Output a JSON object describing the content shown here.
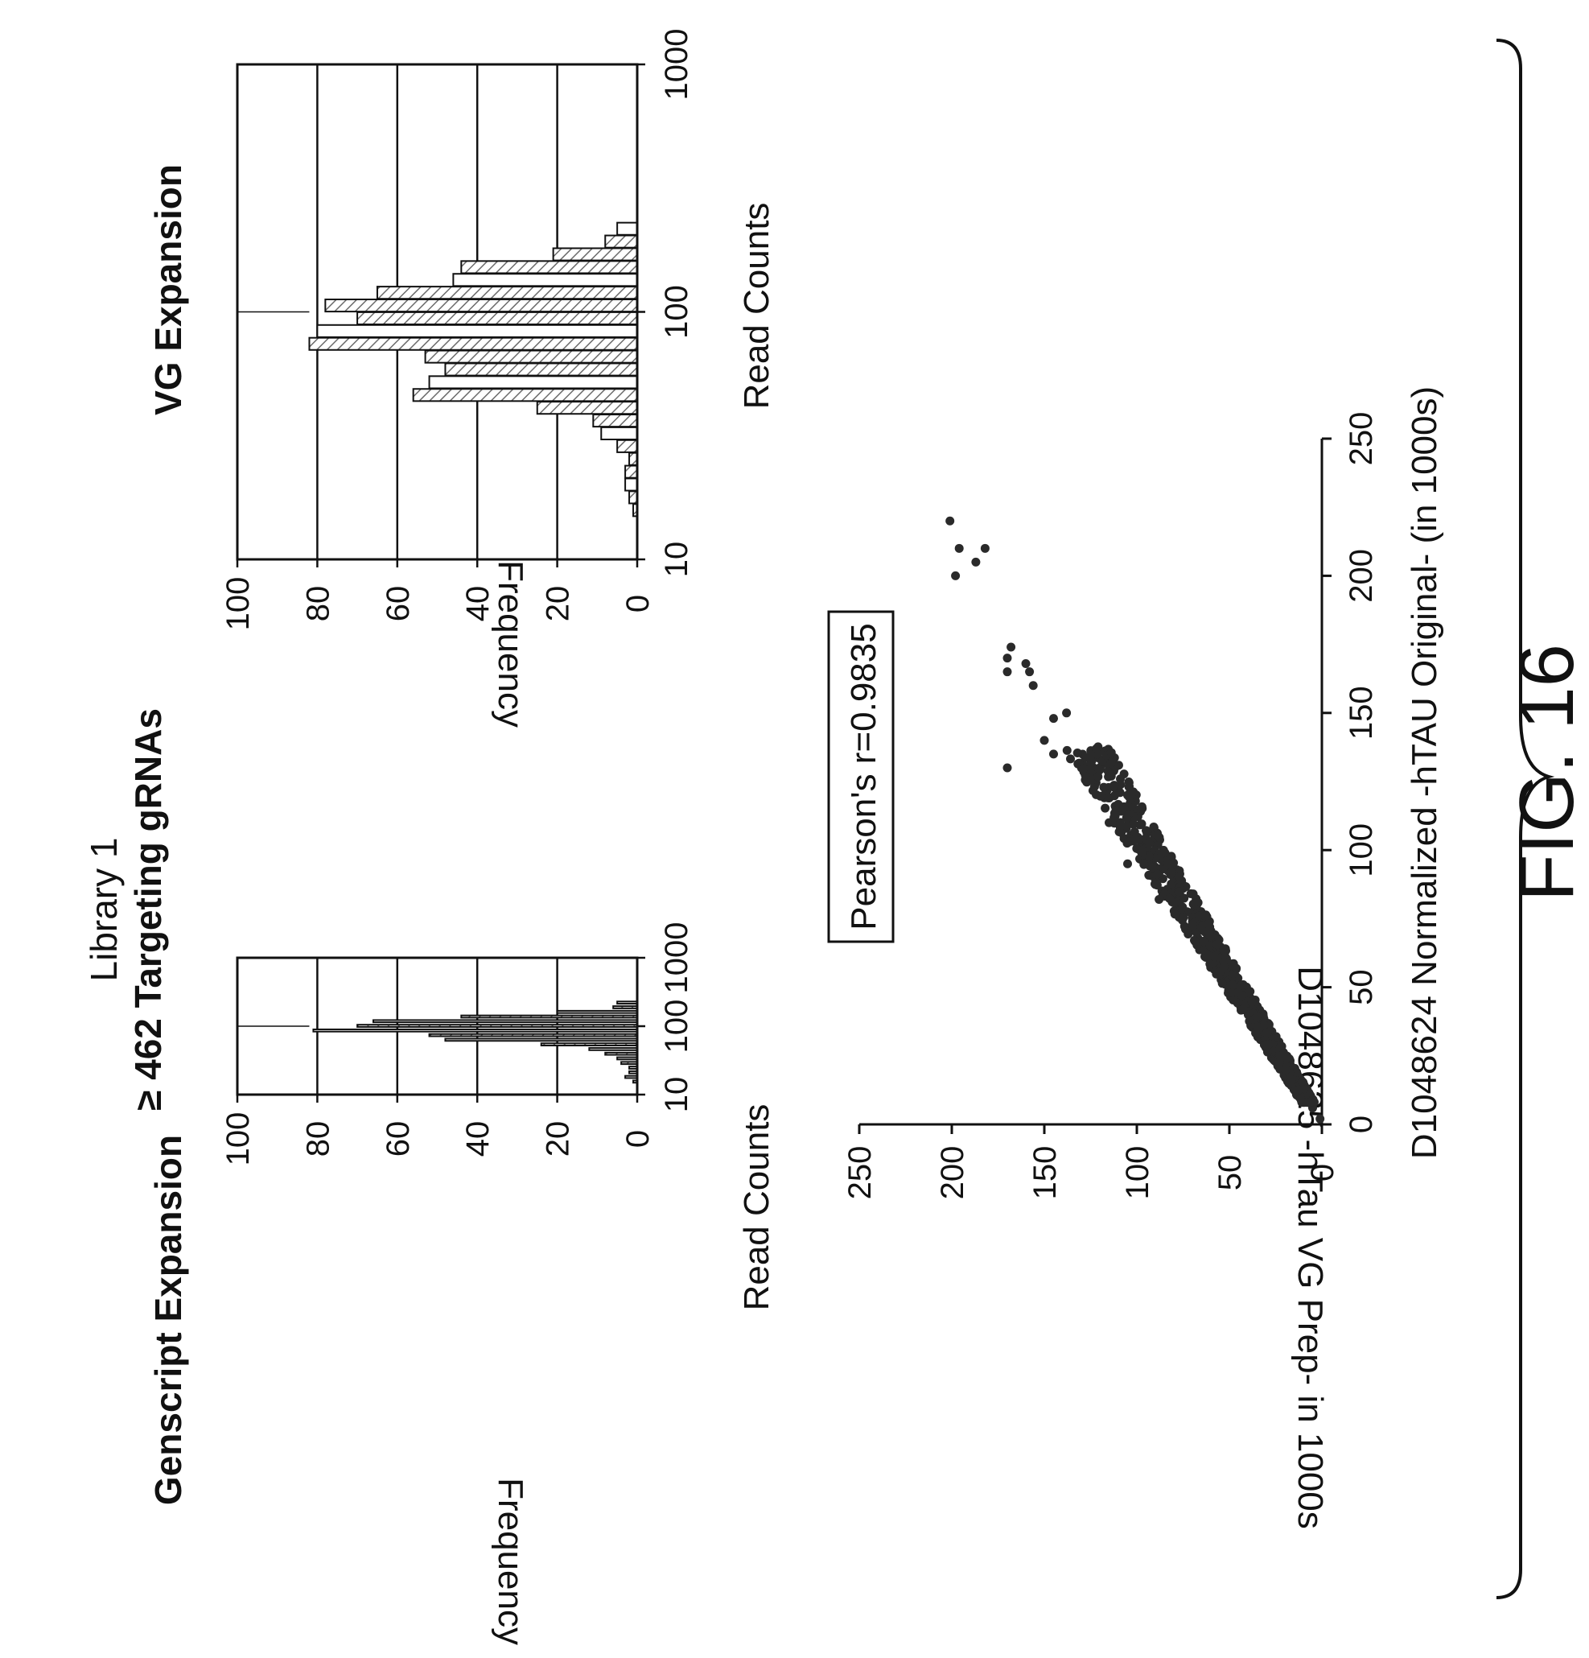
{
  "figure": {
    "library_title": "Library 1",
    "library_subtitle": "≥ 462 Targeting gRNAs",
    "fig_label": "FIG. 16",
    "pearson_label": "Pearson's r=0.9835",
    "hatch_color": "#6b6b6b",
    "ink_color": "#111111"
  },
  "chart_data": [
    {
      "type": "bar",
      "title": "Genscript Expansion",
      "xlabel": "Read Counts",
      "ylabel": "Frequency",
      "x_scale": "log",
      "xlim": [
        10,
        1000
      ],
      "ylim": [
        0,
        100
      ],
      "x_ticks": [
        "10",
        "100",
        "1000"
      ],
      "y_ticks": [
        "0",
        "20",
        "40",
        "60",
        "80",
        "100"
      ],
      "grid": "horizontal",
      "reference_line_x": 100,
      "bins_left_edge": [
        14.9,
        16.2,
        17.7,
        19.3,
        21.1,
        23.0,
        25.1,
        27.4,
        29.9,
        32.6,
        35.6,
        38.8,
        42.3,
        46.2,
        50.3,
        54.9,
        59.9,
        65.4,
        71.3,
        77.8,
        84.9,
        92.6,
        101.1,
        110.3,
        120.3,
        131.3,
        143.2,
        156.3,
        170.5,
        186.0,
        203.0
      ],
      "values": [
        1,
        0,
        3,
        0,
        2,
        0,
        2,
        0,
        4,
        0,
        5,
        0,
        8,
        0,
        12,
        0,
        24,
        0,
        48,
        0,
        52,
        0,
        81,
        0,
        70,
        0,
        66,
        0,
        44,
        0,
        20,
        0,
        6,
        0,
        5
      ]
    },
    {
      "type": "bar",
      "title": "VG Expansion",
      "xlabel": "Read Counts",
      "ylabel": "Frequency",
      "x_scale": "log",
      "xlim": [
        10,
        1000
      ],
      "ylim": [
        0,
        100
      ],
      "x_ticks": [
        "10",
        "100",
        "1000"
      ],
      "y_ticks": [
        "0",
        "20",
        "40",
        "60",
        "80",
        "100"
      ],
      "grid": "horizontal",
      "reference_line_x": 100,
      "values": [
        1,
        2,
        3,
        3,
        2,
        5,
        9,
        11,
        25,
        56,
        52,
        48,
        53,
        82,
        80,
        70,
        78,
        65,
        46,
        44,
        21,
        8,
        5
      ]
    },
    {
      "type": "scatter",
      "xlabel": "D1048624 Normalized -hTAU Original- (in 1000s)",
      "ylabel": "D1048625 -hTau VG Prep- in 1000s",
      "xlim": [
        0,
        250
      ],
      "ylim": [
        0,
        250
      ],
      "x_ticks": [
        "0",
        "50",
        "100",
        "150",
        "200",
        "250"
      ],
      "y_ticks": [
        "0",
        "50",
        "100",
        "150",
        "200",
        "250"
      ],
      "pearson_r": 0.9835,
      "points": [
        [
          210,
          182
        ],
        [
          205,
          187
        ],
        [
          200,
          198
        ],
        [
          220,
          201
        ],
        [
          210,
          196
        ],
        [
          174,
          168
        ],
        [
          168,
          160
        ],
        [
          165,
          158
        ],
        [
          160,
          156
        ],
        [
          165,
          170
        ],
        [
          170,
          170
        ],
        [
          150,
          138
        ],
        [
          148,
          145
        ],
        [
          130,
          170
        ],
        [
          140,
          150
        ],
        [
          135,
          145
        ],
        [
          120,
          105
        ],
        [
          110,
          115
        ],
        [
          100,
          95
        ],
        [
          95,
          105
        ],
        [
          90,
          80
        ],
        [
          86,
          75
        ],
        [
          82,
          88
        ],
        [
          78,
          69
        ],
        [
          74,
          65
        ],
        [
          70,
          72
        ],
        [
          66,
          60
        ],
        [
          62,
          55
        ],
        [
          58,
          52
        ],
        [
          54,
          48
        ],
        [
          50,
          46
        ],
        [
          46,
          40
        ],
        [
          42,
          38
        ],
        [
          38,
          34
        ],
        [
          34,
          30
        ],
        [
          30,
          24
        ],
        [
          26,
          22
        ],
        [
          22,
          20
        ],
        [
          18,
          16
        ],
        [
          14,
          12
        ],
        [
          10,
          9
        ],
        [
          6,
          5
        ],
        [
          2,
          1
        ]
      ]
    }
  ]
}
